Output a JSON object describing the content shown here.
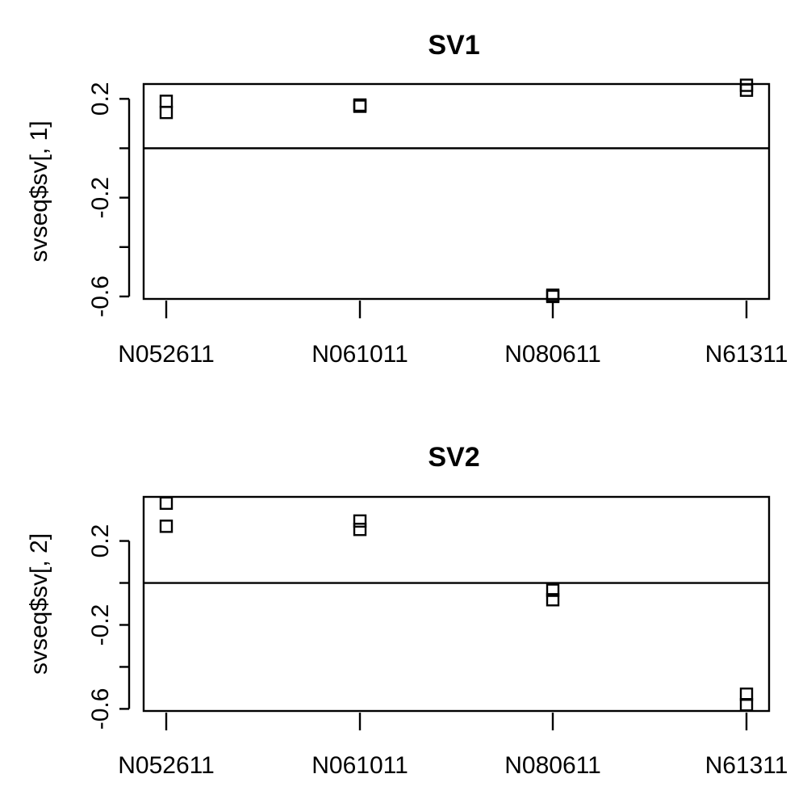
{
  "chart_data": [
    {
      "type": "scatter",
      "title": "SV1",
      "xlabel": "",
      "ylabel": "svseq$sv[, 1]",
      "categories": [
        "N052611",
        "N061011",
        "N080611",
        "N61311"
      ],
      "ylim": [
        -0.61,
        0.26
      ],
      "yticks": [
        0.2,
        0,
        -0.2,
        -0.4,
        -0.6
      ],
      "ytick_labels": [
        "0.2",
        "",
        "-0.2",
        "",
        "-0.6"
      ],
      "hline": 0,
      "points": [
        {
          "category": "N052611",
          "y": 0.19
        },
        {
          "category": "N052611",
          "y": 0.145
        },
        {
          "category": "N061011",
          "y": 0.175
        },
        {
          "category": "N061011",
          "y": 0.17
        },
        {
          "category": "N080611",
          "y": -0.6
        },
        {
          "category": "N080611",
          "y": -0.595
        },
        {
          "category": "N61311",
          "y": 0.255
        },
        {
          "category": "N61311",
          "y": 0.235
        }
      ]
    },
    {
      "type": "scatter",
      "title": "SV2",
      "xlabel": "",
      "ylabel": "svseq$sv[, 2]",
      "categories": [
        "N052611",
        "N061011",
        "N080611",
        "N61311"
      ],
      "ylim": [
        -0.61,
        0.41
      ],
      "yticks": [
        0.2,
        0,
        -0.2,
        -0.4,
        -0.6
      ],
      "ytick_labels": [
        "0.2",
        "",
        "-0.2",
        "",
        "-0.6"
      ],
      "hline": 0,
      "points": [
        {
          "category": "N052611",
          "y": 0.38
        },
        {
          "category": "N052611",
          "y": 0.27
        },
        {
          "category": "N061011",
          "y": 0.295
        },
        {
          "category": "N061011",
          "y": 0.255
        },
        {
          "category": "N080611",
          "y": -0.035
        },
        {
          "category": "N080611",
          "y": -0.08
        },
        {
          "category": "N61311",
          "y": -0.53
        },
        {
          "category": "N61311",
          "y": -0.58
        }
      ]
    }
  ]
}
